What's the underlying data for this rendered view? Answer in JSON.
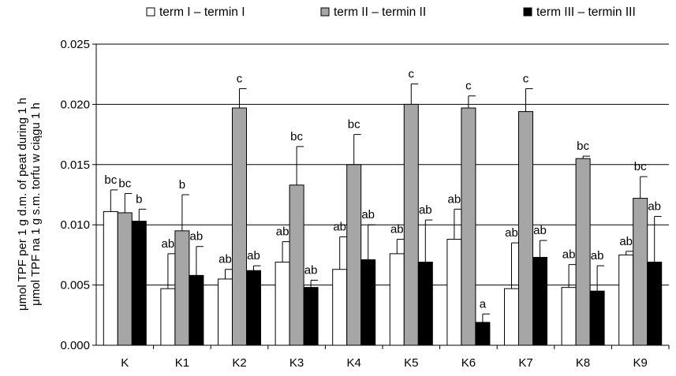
{
  "chart_data": {
    "type": "bar",
    "categories": [
      "K",
      "K1",
      "K2",
      "K3",
      "K4",
      "K5",
      "K6",
      "K7",
      "K8",
      "K9"
    ],
    "series": [
      {
        "name": "term I – termin I",
        "color": "#ffffff",
        "values": [
          0.0111,
          0.0047,
          0.0055,
          0.0069,
          0.0063,
          0.0076,
          0.0088,
          0.0047,
          0.0048,
          0.0075
        ],
        "errors": [
          0.0018,
          0.0029,
          0.0008,
          0.0017,
          0.0027,
          0.0012,
          0.0025,
          0.0038,
          0.0019,
          0.0003
        ],
        "labels": [
          "bc",
          "ab",
          "ab",
          "ab",
          "ab",
          "ab",
          "ab",
          "ab",
          "ab",
          "ab"
        ]
      },
      {
        "name": "term II – termin II",
        "color": "#a6a6a6",
        "values": [
          0.011,
          0.0095,
          0.0197,
          0.0133,
          0.015,
          0.02,
          0.0197,
          0.0194,
          0.0155,
          0.0122
        ],
        "errors": [
          0.0016,
          0.003,
          0.0016,
          0.0032,
          0.0025,
          0.0017,
          0.001,
          0.0019,
          0.0002,
          0.0018
        ],
        "labels": [
          "bc",
          "b",
          "c",
          "bc",
          "bc",
          "c",
          "c",
          "c",
          "bc",
          "bc"
        ]
      },
      {
        "name": "term III – termin III",
        "color": "#000000",
        "values": [
          0.0103,
          0.0058,
          0.0062,
          0.0048,
          0.0071,
          0.0069,
          0.0019,
          0.0073,
          0.0045,
          0.0069
        ],
        "errors": [
          0.001,
          0.0024,
          0.0004,
          0.0006,
          0.0029,
          0.0035,
          0.0007,
          0.0014,
          0.0021,
          0.0038
        ],
        "labels": [
          "b",
          "ab",
          "ab",
          "ab",
          "ab",
          "ab",
          "a",
          "ab",
          "ab",
          "ab"
        ]
      }
    ],
    "ylabel_line1": "μmol TPF per 1 g d.m. of peat during 1 h",
    "ylabel_line2": "μmol TPF na 1 g s.m. torfu w ciągu 1 h",
    "ylim": [
      0,
      0.025
    ],
    "yticks": [
      "0.000",
      "0.005",
      "0.010",
      "0.015",
      "0.020",
      "0.025"
    ],
    "grid": true,
    "legend_position": "top"
  }
}
